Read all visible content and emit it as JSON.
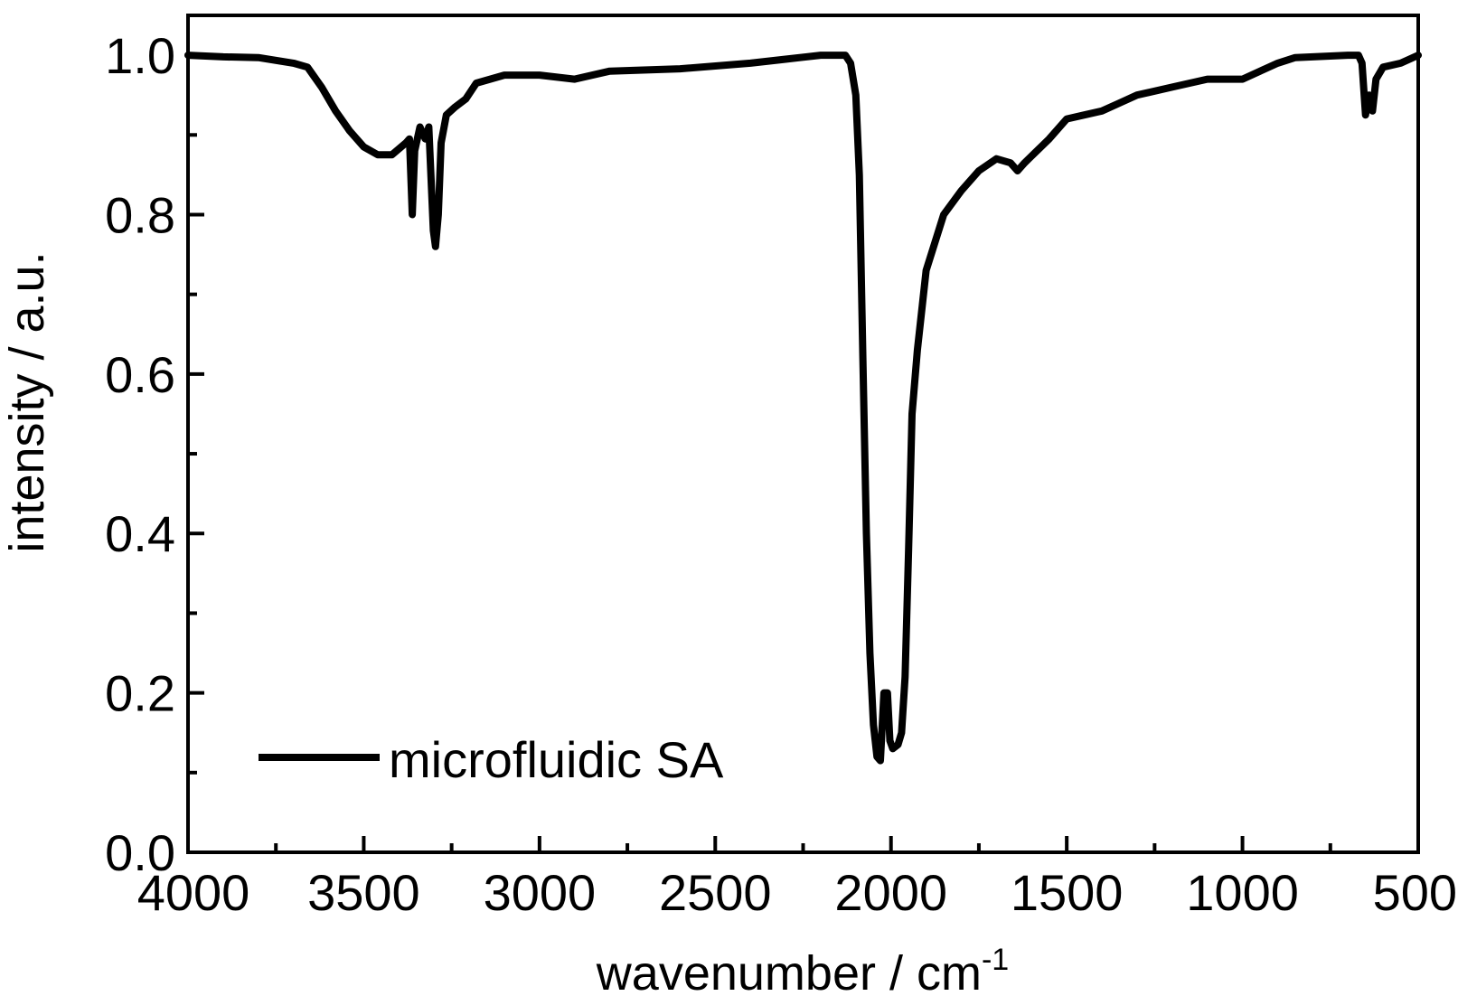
{
  "chart_data": {
    "type": "line",
    "title": "",
    "xlabel": "wavenumber / cm",
    "xlabel_superscript": "-1",
    "ylabel": "intensity / a.u.",
    "xlim": [
      4000,
      500
    ],
    "ylim": [
      0.0,
      1.05
    ],
    "x_reversed": true,
    "grid": false,
    "legend_position": "bottom-left",
    "xticks": [
      {
        "value": 4000,
        "label": "4000"
      },
      {
        "value": 3500,
        "label": "3500"
      },
      {
        "value": 3000,
        "label": "3000"
      },
      {
        "value": 2500,
        "label": "2500"
      },
      {
        "value": 2000,
        "label": "2000"
      },
      {
        "value": 1500,
        "label": "1500"
      },
      {
        "value": 1000,
        "label": "1000"
      },
      {
        "value": 500,
        "label": "500"
      }
    ],
    "yticks": [
      {
        "value": 0.0,
        "label": "0.0"
      },
      {
        "value": 0.2,
        "label": "0.2"
      },
      {
        "value": 0.4,
        "label": "0.4"
      },
      {
        "value": 0.6,
        "label": "0.6"
      },
      {
        "value": 0.8,
        "label": "0.8"
      },
      {
        "value": 1.0,
        "label": "1.0"
      }
    ],
    "series": [
      {
        "name": "microfluidic SA",
        "color": "#000000",
        "points": [
          [
            4000,
            1.0
          ],
          [
            3900,
            0.998
          ],
          [
            3800,
            0.997
          ],
          [
            3700,
            0.99
          ],
          [
            3660,
            0.985
          ],
          [
            3620,
            0.96
          ],
          [
            3580,
            0.93
          ],
          [
            3540,
            0.905
          ],
          [
            3500,
            0.885
          ],
          [
            3460,
            0.875
          ],
          [
            3420,
            0.875
          ],
          [
            3380,
            0.89
          ],
          [
            3370,
            0.895
          ],
          [
            3362,
            0.8
          ],
          [
            3355,
            0.88
          ],
          [
            3340,
            0.91
          ],
          [
            3325,
            0.895
          ],
          [
            3315,
            0.91
          ],
          [
            3302,
            0.78
          ],
          [
            3296,
            0.76
          ],
          [
            3288,
            0.8
          ],
          [
            3280,
            0.89
          ],
          [
            3265,
            0.925
          ],
          [
            3240,
            0.935
          ],
          [
            3210,
            0.945
          ],
          [
            3180,
            0.965
          ],
          [
            3100,
            0.975
          ],
          [
            3000,
            0.975
          ],
          [
            2900,
            0.97
          ],
          [
            2800,
            0.98
          ],
          [
            2600,
            0.983
          ],
          [
            2400,
            0.99
          ],
          [
            2300,
            0.995
          ],
          [
            2200,
            1.0
          ],
          [
            2130,
            1.0
          ],
          [
            2115,
            0.99
          ],
          [
            2100,
            0.95
          ],
          [
            2090,
            0.85
          ],
          [
            2080,
            0.62
          ],
          [
            2070,
            0.4
          ],
          [
            2060,
            0.25
          ],
          [
            2050,
            0.16
          ],
          [
            2040,
            0.12
          ],
          [
            2030,
            0.115
          ],
          [
            2020,
            0.2
          ],
          [
            2010,
            0.2
          ],
          [
            2003,
            0.14
          ],
          [
            1995,
            0.13
          ],
          [
            1980,
            0.135
          ],
          [
            1970,
            0.15
          ],
          [
            1960,
            0.22
          ],
          [
            1950,
            0.38
          ],
          [
            1940,
            0.55
          ],
          [
            1925,
            0.63
          ],
          [
            1900,
            0.73
          ],
          [
            1850,
            0.8
          ],
          [
            1800,
            0.83
          ],
          [
            1750,
            0.855
          ],
          [
            1700,
            0.87
          ],
          [
            1660,
            0.865
          ],
          [
            1640,
            0.855
          ],
          [
            1620,
            0.865
          ],
          [
            1550,
            0.895
          ],
          [
            1500,
            0.92
          ],
          [
            1450,
            0.925
          ],
          [
            1400,
            0.93
          ],
          [
            1350,
            0.94
          ],
          [
            1300,
            0.95
          ],
          [
            1200,
            0.96
          ],
          [
            1100,
            0.97
          ],
          [
            1000,
            0.97
          ],
          [
            950,
            0.98
          ],
          [
            900,
            0.99
          ],
          [
            850,
            0.997
          ],
          [
            800,
            0.998
          ],
          [
            700,
            1.0
          ],
          [
            670,
            1.0
          ],
          [
            660,
            0.99
          ],
          [
            650,
            0.925
          ],
          [
            640,
            0.95
          ],
          [
            630,
            0.93
          ],
          [
            620,
            0.97
          ],
          [
            600,
            0.985
          ],
          [
            550,
            0.99
          ],
          [
            500,
            1.0
          ]
        ]
      }
    ]
  }
}
